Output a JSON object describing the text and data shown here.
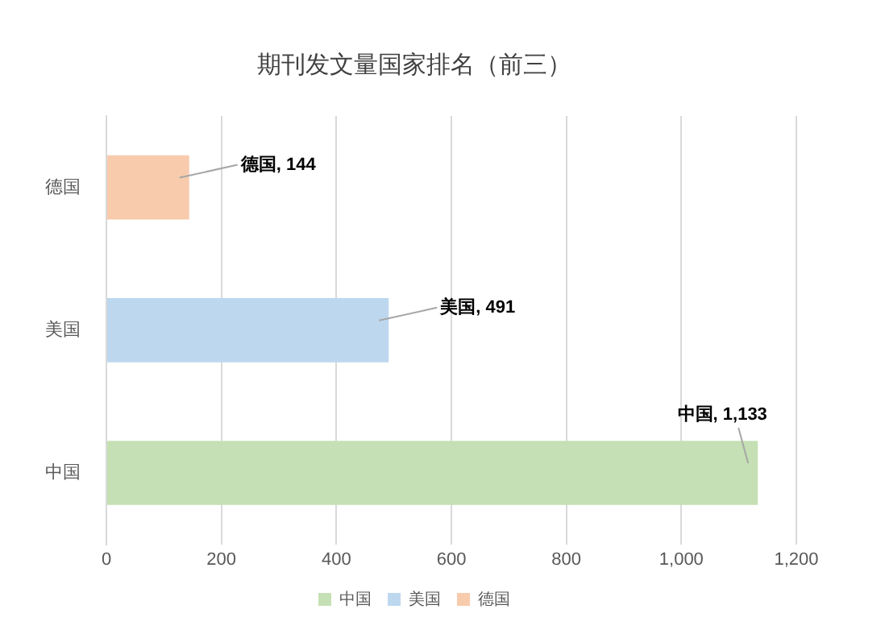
{
  "chart_data": {
    "type": "bar",
    "orientation": "horizontal",
    "title": "期刊发文量国家排名（前三）",
    "categories": [
      "德国",
      "美国",
      "中国"
    ],
    "series": [
      {
        "name": "中国",
        "color": "#c5e0b4",
        "values": [
          null,
          null,
          1133
        ],
        "value_labels": [
          null,
          null,
          "中国, 1,133"
        ]
      },
      {
        "name": "美国",
        "color": "#bdd7ee",
        "values": [
          null,
          491,
          null
        ],
        "value_labels": [
          null,
          "美国, 491",
          null
        ]
      },
      {
        "name": "德国",
        "color": "#f8cbad",
        "values": [
          144,
          null,
          null
        ],
        "value_labels": [
          "德国, 144",
          null,
          null
        ]
      }
    ],
    "xlim": [
      0,
      1200
    ],
    "xticks": [
      0,
      200,
      400,
      600,
      800,
      {
        "value": 1000,
        "label": "1,000"
      },
      {
        "value": 1200,
        "label": "1,200"
      }
    ],
    "grid": "x",
    "legend": "bottom"
  }
}
